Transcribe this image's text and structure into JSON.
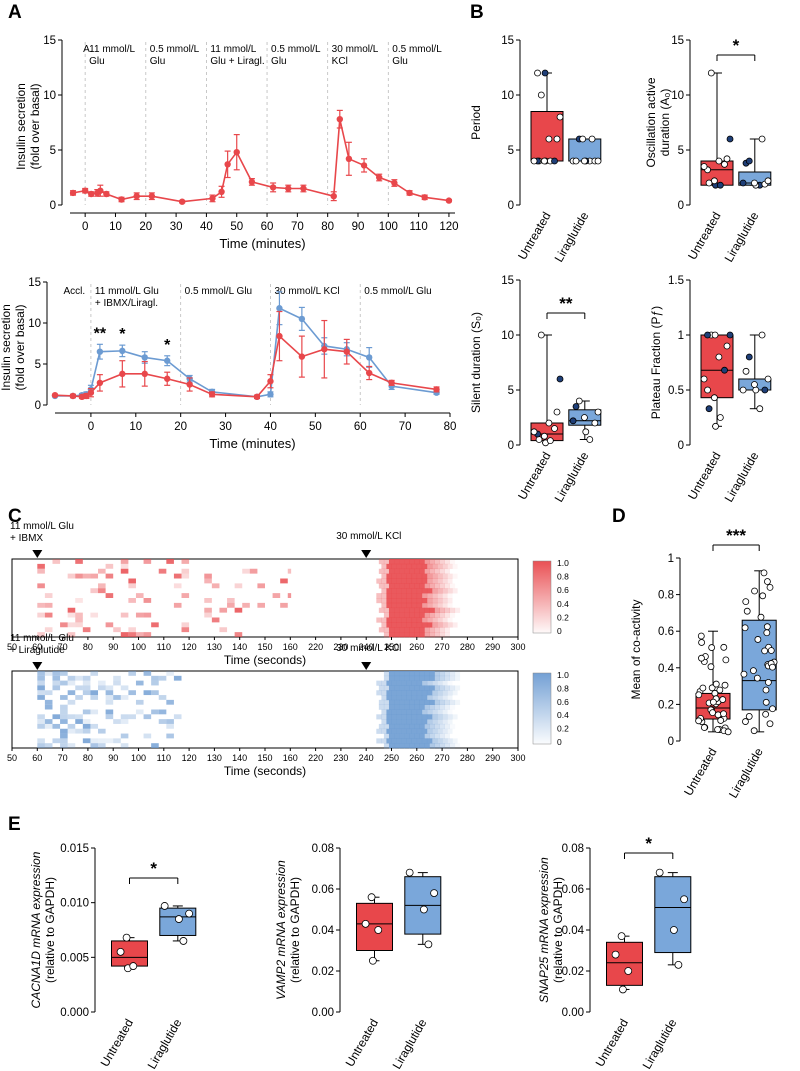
{
  "colors": {
    "untreated": "#e8474b",
    "liraglutide": "#6c9bd2",
    "lira_box": "#7aa7da",
    "dark_blue": "#1f3f78",
    "grid": "#bbbbbb"
  },
  "panels": {
    "A": "A",
    "B": "B",
    "C": "C",
    "D": "D",
    "E": "E"
  },
  "chart_data": [
    {
      "id": "A1",
      "type": "line",
      "xlabel": "Time (minutes)",
      "ylabel": [
        "Insulin secretion",
        "(fold over basal)"
      ],
      "xlim": [
        -5,
        122
      ],
      "ylim": [
        0,
        15
      ],
      "xticks": [
        0,
        10,
        20,
        30,
        40,
        50,
        60,
        70,
        80,
        90,
        100,
        110,
        120
      ],
      "yticks": [
        0,
        5,
        10,
        15
      ],
      "phases": [
        {
          "x": -2,
          "lines": [
            "A."
          ]
        },
        {
          "x": 0,
          "lines": [
            "11 mmol/L",
            "Glu"
          ]
        },
        {
          "x": 20,
          "lines": [
            "0.5 mmol/L",
            "Glu"
          ]
        },
        {
          "x": 40,
          "lines": [
            "11 mmol/L",
            "Glu + Liragl."
          ]
        },
        {
          "x": 60,
          "lines": [
            "0.5 mmol/L",
            "Glu"
          ]
        },
        {
          "x": 80,
          "lines": [
            "30 mmol/L",
            "KCl"
          ]
        },
        {
          "x": 100,
          "lines": [
            "0.5 mmol/L",
            "Glu"
          ]
        }
      ],
      "dividers": [
        0,
        20,
        40,
        60,
        80,
        100
      ],
      "series": [
        {
          "name": "Untreated",
          "x": [
            -4,
            0,
            2,
            4,
            5,
            7,
            12,
            17,
            22,
            32,
            42,
            45,
            47,
            50,
            55,
            62,
            67,
            72,
            82,
            84,
            87,
            92,
            97,
            102,
            107,
            112,
            120
          ],
          "y": [
            1.1,
            1.3,
            1.0,
            1.1,
            1.3,
            1.0,
            0.5,
            0.8,
            0.8,
            0.3,
            0.6,
            1.2,
            3.7,
            4.8,
            2.1,
            1.6,
            1.5,
            1.5,
            0.8,
            7.8,
            4.2,
            3.6,
            2.5,
            2.0,
            1.1,
            0.7,
            0.4
          ],
          "err": [
            0.2,
            0.2,
            0.2,
            0.3,
            0.5,
            0.2,
            0.2,
            0.3,
            0.3,
            0.1,
            0.3,
            0.5,
            1.2,
            1.6,
            0.3,
            0.4,
            0.3,
            0.3,
            0.4,
            0.8,
            1.5,
            0.6,
            0.3,
            0.3,
            0.2,
            0.2,
            0.1
          ]
        }
      ]
    },
    {
      "id": "A2",
      "type": "line",
      "xlabel": "Time (minutes)",
      "ylabel": [
        "Insulin secretion",
        "(fold over basal)"
      ],
      "xlim": [
        -8,
        80
      ],
      "ylim": [
        0,
        15
      ],
      "xticks": [
        0,
        10,
        20,
        30,
        40,
        50,
        60,
        70,
        80
      ],
      "yticks": [
        0,
        5,
        10,
        15
      ],
      "phases": [
        {
          "x": -7,
          "lines": [
            "Accl."
          ]
        },
        {
          "x": 0,
          "lines": [
            "11 mmol/L Glu",
            "+ IBMX/Liragl."
          ]
        },
        {
          "x": 20,
          "lines": [
            "0.5 mmol/L Glu"
          ]
        },
        {
          "x": 40,
          "lines": [
            "30 mmol/L KCl"
          ]
        },
        {
          "x": 60,
          "lines": [
            "0.5 mmol/L Glu"
          ]
        }
      ],
      "dividers": [
        0,
        20,
        40,
        60
      ],
      "series": [
        {
          "name": "Liraglutide",
          "x": [
            -8,
            -4,
            -2,
            -1,
            0,
            2,
            7,
            12,
            17,
            22,
            27,
            37,
            40,
            42,
            47,
            52,
            57,
            62,
            67,
            77
          ],
          "y": [
            1.1,
            1.1,
            1.2,
            1.3,
            1.9,
            6.5,
            6.6,
            5.8,
            5.4,
            3.2,
            1.6,
            1.0,
            1.3,
            11.8,
            10.5,
            7.2,
            6.8,
            5.8,
            2.3,
            1.5
          ],
          "err": [
            0.1,
            0.2,
            0.2,
            0.3,
            0.5,
            0.9,
            0.7,
            0.7,
            0.6,
            0.4,
            0.3,
            0.2,
            0.3,
            2.0,
            1.4,
            1.0,
            0.8,
            1.2,
            0.4,
            0.2
          ]
        },
        {
          "name": "Untreated",
          "x": [
            -8,
            -4,
            -2,
            -1,
            0,
            2,
            7,
            12,
            17,
            22,
            27,
            37,
            40,
            42,
            47,
            52,
            57,
            62,
            67,
            77
          ],
          "y": [
            1.2,
            1.1,
            1.0,
            1.1,
            1.5,
            2.7,
            3.8,
            3.8,
            3.2,
            2.5,
            1.3,
            1.0,
            2.9,
            8.4,
            5.9,
            6.8,
            6.5,
            3.9,
            2.7,
            1.9
          ],
          "err": [
            0.1,
            0.2,
            0.2,
            0.3,
            0.5,
            1.0,
            1.6,
            1.5,
            0.8,
            0.8,
            0.3,
            0.2,
            0.8,
            3.0,
            2.5,
            3.5,
            1.5,
            0.8,
            0.3,
            0.3
          ]
        }
      ],
      "significance": [
        {
          "x": 2,
          "label": "**"
        },
        {
          "x": 7,
          "label": "*"
        },
        {
          "x": 17,
          "label": "*"
        }
      ]
    },
    {
      "id": "B1",
      "type": "box",
      "ylabel": [
        "Period"
      ],
      "ylim": [
        0,
        15
      ],
      "yticks": [
        0,
        5,
        10,
        15
      ],
      "categories": [
        "Untreated",
        "Liraglutide"
      ],
      "boxes": [
        {
          "min": 4,
          "q1": 4,
          "median": 4,
          "q3": 8.5,
          "max": 12,
          "points": [
            4,
            4,
            4,
            4,
            4,
            4,
            4,
            6,
            6,
            8,
            10,
            12,
            12
          ],
          "dark": [
            4,
            6,
            12
          ]
        },
        {
          "min": 4,
          "q1": 4,
          "median": 4,
          "q3": 6,
          "max": 6,
          "points": [
            4,
            4,
            4,
            4,
            4,
            4,
            4,
            6,
            6,
            6
          ],
          "dark": [
            1,
            7
          ]
        }
      ]
    },
    {
      "id": "B2",
      "type": "box",
      "ylabel": [
        "Oscillation active",
        "duration (A₀)"
      ],
      "ylim": [
        0,
        15
      ],
      "yticks": [
        0,
        5,
        10,
        15
      ],
      "categories": [
        "Untreated",
        "Liraglutide"
      ],
      "boxes": [
        {
          "min": 1.8,
          "q1": 1.8,
          "median": 3.2,
          "q3": 4.0,
          "max": 12,
          "points": [
            1.8,
            1.8,
            2.0,
            2.2,
            3.2,
            3.5,
            3.7,
            4.0,
            4.2,
            6.0,
            12
          ],
          "dark": [
            0,
            1,
            9
          ]
        },
        {
          "min": 1.8,
          "q1": 1.8,
          "median": 2.0,
          "q3": 3.0,
          "max": 6,
          "points": [
            1.8,
            1.8,
            1.9,
            2.0,
            2.0,
            2.2,
            3.8,
            4.0,
            6.0
          ],
          "dark": [
            0,
            3,
            6,
            7
          ]
        }
      ],
      "significance": "*"
    },
    {
      "id": "B3",
      "type": "box",
      "ylabel": [
        "Silent duration (S₀)"
      ],
      "ylim": [
        0,
        15
      ],
      "yticks": [
        0,
        5,
        10,
        15
      ],
      "categories": [
        "Untreated",
        "Liraglutide"
      ],
      "boxes": [
        {
          "min": 0.2,
          "q1": 0.4,
          "median": 1.0,
          "q3": 2.0,
          "max": 10,
          "points": [
            0.2,
            0.4,
            0.5,
            0.8,
            1.0,
            1.2,
            1.5,
            2.0,
            3.0,
            6.0,
            10
          ],
          "dark": [
            4,
            9
          ]
        },
        {
          "min": 0.5,
          "q1": 1.8,
          "median": 2.2,
          "q3": 3.2,
          "max": 4,
          "points": [
            0.5,
            1.2,
            2.0,
            2.2,
            2.5,
            3.0,
            3.5,
            4.0
          ],
          "dark": [
            3,
            6
          ]
        }
      ],
      "significance": "**"
    },
    {
      "id": "B4",
      "type": "box",
      "ylabel": [
        "Plateau  Fraction  (Pƒ)"
      ],
      "ylim": [
        0,
        1.5
      ],
      "yticks": [
        0,
        0.5,
        1.0,
        1.5
      ],
      "categories": [
        "Untreated",
        "Liraglutide"
      ],
      "boxes": [
        {
          "min": 0.17,
          "q1": 0.43,
          "median": 0.68,
          "q3": 1.0,
          "max": 1.0,
          "points": [
            0.17,
            0.25,
            0.33,
            0.43,
            0.5,
            0.6,
            0.68,
            0.8,
            0.9,
            1.0,
            1.0,
            1.0,
            1.0
          ],
          "dark": [
            2,
            6,
            9,
            11
          ]
        },
        {
          "min": 0.33,
          "q1": 0.5,
          "median": 0.5,
          "q3": 0.6,
          "max": 1.0,
          "points": [
            0.33,
            0.5,
            0.5,
            0.5,
            0.55,
            0.6,
            0.67,
            0.8,
            1.0
          ],
          "dark": [
            2,
            7
          ]
        }
      ]
    },
    {
      "id": "C",
      "type": "heatmap",
      "xlabel": "Time (seconds)",
      "xticks": [
        50,
        60,
        70,
        80,
        90,
        100,
        110,
        120,
        130,
        140,
        150,
        160,
        220,
        230,
        240,
        250,
        260,
        270,
        280,
        290,
        300
      ],
      "colorbar_ticks": [
        "1.0",
        "0.8",
        "0.6",
        "0.4",
        "0.2",
        "0"
      ],
      "maps": [
        {
          "name": "Untreated",
          "stim1": [
            "11 mmol/L Glu",
            "+ IBMX"
          ],
          "stim2": [
            "30 mmol/L KCl"
          ],
          "density": 0.22,
          "early_end": 160
        },
        {
          "name": "Liraglutide",
          "stim1": [
            "11 mmol/L Glu",
            "+ Liraglutide"
          ],
          "stim2": [
            "30 mmol/L KCl"
          ],
          "density": 0.55,
          "early_end": 115
        }
      ]
    },
    {
      "id": "D",
      "type": "box",
      "ylabel": [
        "Mean of co-activity"
      ],
      "ylim": [
        0,
        1.0
      ],
      "yticks": [
        0,
        0.2,
        0.4,
        0.6,
        0.8,
        1.0
      ],
      "categories": [
        "Untreated",
        "Liraglutide"
      ],
      "boxes": [
        {
          "min": 0.05,
          "q1": 0.12,
          "median": 0.18,
          "q3": 0.26,
          "max": 0.6
        },
        {
          "min": 0.05,
          "q1": 0.17,
          "median": 0.33,
          "q3": 0.66,
          "max": 0.93
        }
      ],
      "significance": "***"
    },
    {
      "id": "E1",
      "type": "box",
      "ylabel": [
        "CACNA1D mRNA expression",
        "(relative to  GAPDH)"
      ],
      "ylim": [
        0,
        0.015
      ],
      "yticks": [
        "0.000",
        "0.005",
        "0.010",
        "0.015"
      ],
      "categories": [
        "Untreated",
        "Liraglutide"
      ],
      "boxes": [
        {
          "min": 0.004,
          "q1": 0.0042,
          "median": 0.005,
          "q3": 0.0065,
          "max": 0.0068,
          "points": [
            0.004,
            0.0042,
            0.0055,
            0.0068
          ]
        },
        {
          "min": 0.0065,
          "q1": 0.007,
          "median": 0.0087,
          "q3": 0.0095,
          "max": 0.0097,
          "points": [
            0.0065,
            0.0085,
            0.009,
            0.0097
          ]
        }
      ],
      "significance": "*"
    },
    {
      "id": "E2",
      "type": "box",
      "ylabel": [
        "VAMP2 mRNA expression",
        "(relative to  GAPDH)"
      ],
      "ylim": [
        0,
        0.08
      ],
      "yticks": [
        "0.00",
        "0.02",
        "0.04",
        "0.06",
        "0.08"
      ],
      "categories": [
        "Untreated",
        "Liraglutide"
      ],
      "boxes": [
        {
          "min": 0.025,
          "q1": 0.03,
          "median": 0.043,
          "q3": 0.053,
          "max": 0.056,
          "points": [
            0.025,
            0.04,
            0.043,
            0.056
          ]
        },
        {
          "min": 0.033,
          "q1": 0.038,
          "median": 0.052,
          "q3": 0.066,
          "max": 0.068,
          "points": [
            0.033,
            0.05,
            0.058,
            0.068
          ]
        }
      ]
    },
    {
      "id": "E3",
      "type": "box",
      "ylabel": [
        "SNAP25 mRNA expression",
        "(relative to  GAPDH)"
      ],
      "ylim": [
        0,
        0.08
      ],
      "yticks": [
        "0.00",
        "0.02",
        "0.04",
        "0.06",
        "0.08"
      ],
      "categories": [
        "Untreated",
        "Liraglutide"
      ],
      "boxes": [
        {
          "min": 0.011,
          "q1": 0.013,
          "median": 0.024,
          "q3": 0.034,
          "max": 0.037,
          "points": [
            0.011,
            0.02,
            0.028,
            0.037
          ]
        },
        {
          "min": 0.023,
          "q1": 0.029,
          "median": 0.051,
          "q3": 0.066,
          "max": 0.068,
          "points": [
            0.023,
            0.04,
            0.055,
            0.068
          ]
        }
      ],
      "significance": "*"
    }
  ]
}
